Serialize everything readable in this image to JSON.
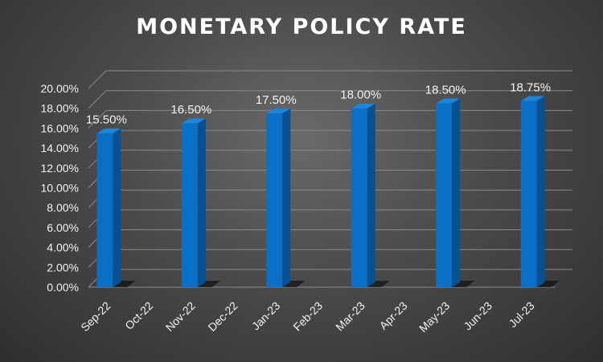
{
  "chart_data": {
    "type": "bar",
    "title": "MONETARY POLICY RATE",
    "categories": [
      "Sep-22",
      "Oct-22",
      "Nov-22",
      "Dec-22",
      "Jan-23",
      "Feb-23",
      "Mar-23",
      "Apr-23",
      "May-23",
      "Jun-23",
      "Jul-23"
    ],
    "values": [
      15.5,
      null,
      16.5,
      null,
      17.5,
      null,
      18.0,
      null,
      18.5,
      null,
      18.75
    ],
    "data_labels": [
      "15.50%",
      "",
      "16.50%",
      "",
      "17.50%",
      "",
      "18.00%",
      "",
      "18.50%",
      "",
      "18.75%"
    ],
    "y_ticks": [
      "0.00%",
      "2.00%",
      "4.00%",
      "6.00%",
      "8.00%",
      "10.00%",
      "12.00%",
      "14.00%",
      "16.00%",
      "18.00%",
      "20.00%"
    ],
    "ylim": [
      0,
      20
    ],
    "grid": true,
    "legend": "none",
    "style": "3d-column",
    "colors": {
      "bar_front": "#0a6fc7",
      "bar_side": "#0a4f8e",
      "bar_top": "#1a86dc",
      "background": "#4a4a4a",
      "gridline": "#8a8a8a",
      "text": "#f2f2f2"
    }
  }
}
